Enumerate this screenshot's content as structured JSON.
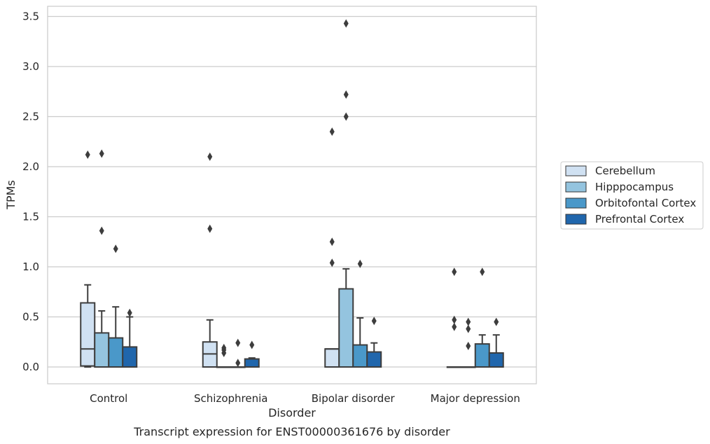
{
  "chart_data": {
    "type": "boxplot",
    "caption": "Transcript expression for ENST00000361676 by disorder",
    "xlabel": "Disorder",
    "ylabel": "TPMs",
    "ylim": [
      -0.17,
      3.6
    ],
    "yticks": [
      "0.0",
      "0.5",
      "1.0",
      "1.5",
      "2.0",
      "2.5",
      "3.0",
      "3.5"
    ],
    "grid": "horizontal",
    "legend_position": "right",
    "categories": [
      "Control",
      "Schizophrenia",
      "Bipolar disorder",
      "Major depression"
    ],
    "series": [
      {
        "name": "Cerebellum",
        "color": "#d0e1f2",
        "boxes": [
          {
            "whislo": 0.0,
            "q1": 0.01,
            "med": 0.18,
            "q3": 0.64,
            "whishi": 0.82,
            "fliers": [
              2.12
            ]
          },
          {
            "whislo": 0.0,
            "q1": 0.0,
            "med": 0.13,
            "q3": 0.25,
            "whishi": 0.47,
            "fliers": [
              1.38,
              2.1
            ]
          },
          {
            "whislo": 0.0,
            "q1": 0.0,
            "med": 0.18,
            "q3": 0.18,
            "whishi": 0.18,
            "fliers": [
              1.04,
              1.25,
              2.35
            ]
          },
          {
            "whislo": 0.0,
            "q1": 0.0,
            "med": 0.0,
            "q3": 0.0,
            "whishi": 0.0,
            "fliers": [
              0.4,
              0.47,
              0.95
            ]
          }
        ]
      },
      {
        "name": "Hipppocampus",
        "color": "#94c4df",
        "boxes": [
          {
            "whislo": 0.0,
            "q1": 0.0,
            "med": 0.0,
            "q3": 0.34,
            "whishi": 0.56,
            "fliers": [
              1.36,
              2.13
            ]
          },
          {
            "whislo": 0.0,
            "q1": 0.0,
            "med": 0.0,
            "q3": 0.0,
            "whishi": 0.0,
            "fliers": [
              0.14,
              0.17,
              0.19
            ]
          },
          {
            "whislo": 0.0,
            "q1": 0.0,
            "med": 0.0,
            "q3": 0.78,
            "whishi": 0.98,
            "fliers": [
              2.5,
              2.72,
              3.43
            ]
          },
          {
            "whislo": 0.0,
            "q1": 0.0,
            "med": 0.0,
            "q3": 0.0,
            "whishi": 0.0,
            "fliers": [
              0.21,
              0.38,
              0.45
            ]
          }
        ]
      },
      {
        "name": "Orbitofontal Cortex",
        "color": "#4a98c9",
        "boxes": [
          {
            "whislo": 0.0,
            "q1": 0.0,
            "med": 0.0,
            "q3": 0.29,
            "whishi": 0.6,
            "fliers": [
              1.18
            ]
          },
          {
            "whislo": 0.0,
            "q1": 0.0,
            "med": 0.0,
            "q3": 0.0,
            "whishi": 0.0,
            "fliers": [
              0.04,
              0.24
            ]
          },
          {
            "whislo": 0.0,
            "q1": 0.0,
            "med": 0.0,
            "q3": 0.22,
            "whishi": 0.49,
            "fliers": [
              1.03
            ]
          },
          {
            "whislo": 0.0,
            "q1": 0.0,
            "med": 0.0,
            "q3": 0.23,
            "whishi": 0.32,
            "fliers": [
              0.95
            ]
          }
        ]
      },
      {
        "name": "Prefrontal Cortex",
        "color": "#2066ac",
        "boxes": [
          {
            "whislo": 0.0,
            "q1": 0.0,
            "med": 0.0,
            "q3": 0.2,
            "whishi": 0.5,
            "fliers": [
              0.54
            ]
          },
          {
            "whislo": 0.0,
            "q1": 0.0,
            "med": 0.0,
            "q3": 0.08,
            "whishi": 0.09,
            "fliers": [
              0.22
            ]
          },
          {
            "whislo": 0.0,
            "q1": 0.0,
            "med": 0.0,
            "q3": 0.15,
            "whishi": 0.24,
            "fliers": [
              0.46
            ]
          },
          {
            "whislo": 0.0,
            "q1": 0.0,
            "med": 0.0,
            "q3": 0.14,
            "whishi": 0.32,
            "fliers": [
              0.45
            ]
          }
        ]
      }
    ]
  }
}
